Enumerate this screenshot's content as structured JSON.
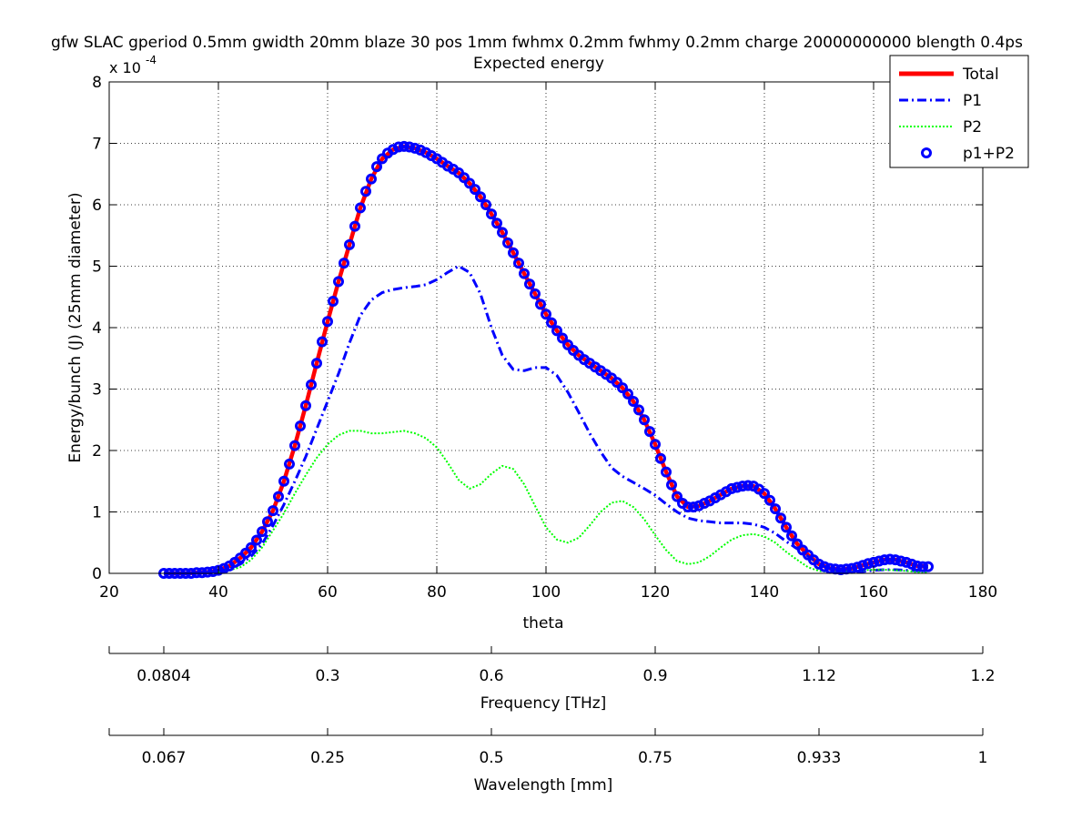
{
  "chart_data": {
    "type": "line",
    "title": "gfw SLAC gperiod 0.5mm gwidth 20mm blaze 30 pos 1mm fwhmx 0.2mm fwhmy 0.2mm charge 20000000000 blength 0.4ps",
    "subtitle": "Expected energy",
    "xlabel": "theta",
    "ylabel": "Energy/bunch (J) (25mm diameter)",
    "y_multiplier_label": "x 10",
    "y_multiplier_exponent": "-4",
    "y_scale_factor": 0.0001,
    "xlim": [
      20,
      180
    ],
    "ylim": [
      0,
      8
    ],
    "x_ticks": [
      20,
      40,
      60,
      80,
      100,
      120,
      140,
      160,
      180
    ],
    "y_ticks": [
      0,
      1,
      2,
      3,
      4,
      5,
      6,
      7,
      8
    ],
    "grid": true,
    "legend_position": "top-right",
    "series": [
      {
        "name": "Total",
        "style": "solid",
        "color": "#ff0000",
        "x": [
          30,
          32,
          34,
          36,
          38,
          40,
          42,
          44,
          46,
          48,
          50,
          52,
          54,
          56,
          58,
          60,
          62,
          64,
          66,
          68,
          70,
          72,
          74,
          76,
          78,
          80,
          82,
          84,
          86,
          88,
          90,
          92,
          94,
          96,
          98,
          100,
          102,
          104,
          106,
          108,
          110,
          112,
          114,
          116,
          118,
          120,
          122,
          124,
          126,
          128,
          130,
          132,
          134,
          136,
          138,
          140,
          142,
          144,
          146,
          148,
          150,
          152,
          154,
          156,
          158,
          160,
          162,
          164,
          166,
          168,
          170
        ],
        "y": [
          0.0,
          0.0,
          0.0,
          0.01,
          0.02,
          0.05,
          0.12,
          0.25,
          0.42,
          0.68,
          1.02,
          1.5,
          2.08,
          2.73,
          3.42,
          4.1,
          4.75,
          5.35,
          5.95,
          6.42,
          6.75,
          6.9,
          6.95,
          6.92,
          6.85,
          6.75,
          6.63,
          6.52,
          6.35,
          6.13,
          5.85,
          5.55,
          5.22,
          4.88,
          4.55,
          4.22,
          3.95,
          3.72,
          3.55,
          3.42,
          3.3,
          3.18,
          3.02,
          2.8,
          2.5,
          2.1,
          1.65,
          1.25,
          1.08,
          1.1,
          1.18,
          1.28,
          1.38,
          1.42,
          1.42,
          1.3,
          1.05,
          0.75,
          0.48,
          0.3,
          0.15,
          0.08,
          0.06,
          0.08,
          0.13,
          0.18,
          0.22,
          0.22,
          0.18,
          0.12,
          0.11
        ]
      },
      {
        "name": "P1",
        "style": "dashdot",
        "color": "#0000ff",
        "x": [
          30,
          32,
          34,
          36,
          38,
          40,
          42,
          44,
          46,
          48,
          50,
          52,
          54,
          56,
          58,
          60,
          62,
          64,
          66,
          68,
          70,
          72,
          74,
          76,
          78,
          80,
          82,
          84,
          86,
          88,
          90,
          92,
          94,
          96,
          98,
          100,
          102,
          104,
          106,
          108,
          110,
          112,
          114,
          116,
          118,
          120,
          122,
          124,
          126,
          128,
          130,
          132,
          134,
          136,
          138,
          140,
          142,
          144,
          146,
          148,
          150,
          152,
          154,
          156,
          158,
          160,
          162,
          164,
          166,
          168,
          170
        ],
        "y": [
          0.0,
          0.0,
          0.0,
          0.0,
          0.01,
          0.03,
          0.07,
          0.15,
          0.28,
          0.48,
          0.78,
          1.12,
          1.5,
          1.9,
          2.35,
          2.8,
          3.25,
          3.75,
          4.2,
          4.45,
          4.57,
          4.62,
          4.65,
          4.67,
          4.7,
          4.78,
          4.9,
          5.0,
          4.9,
          4.55,
          4.0,
          3.55,
          3.32,
          3.3,
          3.35,
          3.35,
          3.22,
          2.95,
          2.62,
          2.28,
          1.98,
          1.72,
          1.58,
          1.48,
          1.38,
          1.27,
          1.13,
          1.0,
          0.9,
          0.86,
          0.84,
          0.82,
          0.82,
          0.82,
          0.8,
          0.75,
          0.65,
          0.52,
          0.4,
          0.28,
          0.15,
          0.07,
          0.03,
          0.02,
          0.03,
          0.05,
          0.06,
          0.06,
          0.05,
          0.04,
          0.03
        ]
      },
      {
        "name": "P2",
        "style": "dotted",
        "color": "#00ff00",
        "x": [
          30,
          32,
          34,
          36,
          38,
          40,
          42,
          44,
          46,
          48,
          50,
          52,
          54,
          56,
          58,
          60,
          62,
          64,
          66,
          68,
          70,
          72,
          74,
          76,
          78,
          80,
          82,
          84,
          86,
          88,
          90,
          92,
          94,
          96,
          98,
          100,
          102,
          104,
          106,
          108,
          110,
          112,
          114,
          116,
          118,
          120,
          122,
          124,
          126,
          128,
          130,
          132,
          134,
          136,
          138,
          140,
          142,
          144,
          146,
          148,
          150,
          152,
          154,
          156,
          158,
          160,
          162,
          164,
          166,
          168,
          170
        ],
        "y": [
          0.0,
          0.0,
          0.0,
          0.0,
          0.01,
          0.02,
          0.05,
          0.1,
          0.22,
          0.42,
          0.7,
          0.98,
          1.3,
          1.6,
          1.88,
          2.1,
          2.25,
          2.32,
          2.32,
          2.28,
          2.28,
          2.3,
          2.32,
          2.28,
          2.2,
          2.05,
          1.8,
          1.52,
          1.38,
          1.45,
          1.62,
          1.75,
          1.7,
          1.45,
          1.1,
          0.75,
          0.55,
          0.5,
          0.58,
          0.78,
          1.0,
          1.15,
          1.18,
          1.08,
          0.88,
          0.62,
          0.38,
          0.2,
          0.15,
          0.18,
          0.28,
          0.42,
          0.55,
          0.62,
          0.64,
          0.6,
          0.5,
          0.35,
          0.22,
          0.1,
          0.04,
          0.02,
          0.02,
          0.03,
          0.05,
          0.06,
          0.06,
          0.05,
          0.04,
          0.02,
          0.01
        ]
      },
      {
        "name": "p1+P2",
        "style": "markers",
        "marker": "circle",
        "color": "#0000ff",
        "x": [
          30,
          31,
          32,
          33,
          34,
          35,
          36,
          37,
          38,
          39,
          40,
          41,
          42,
          43,
          44,
          45,
          46,
          47,
          48,
          49,
          50,
          51,
          52,
          53,
          54,
          55,
          56,
          57,
          58,
          59,
          60,
          61,
          62,
          63,
          64,
          65,
          66,
          67,
          68,
          69,
          70,
          71,
          72,
          73,
          74,
          75,
          76,
          77,
          78,
          79,
          80,
          81,
          82,
          83,
          84,
          85,
          86,
          87,
          88,
          89,
          90,
          91,
          92,
          93,
          94,
          95,
          96,
          97,
          98,
          99,
          100,
          101,
          102,
          103,
          104,
          105,
          106,
          107,
          108,
          109,
          110,
          111,
          112,
          113,
          114,
          115,
          116,
          117,
          118,
          119,
          120,
          121,
          122,
          123,
          124,
          125,
          126,
          127,
          128,
          129,
          130,
          131,
          132,
          133,
          134,
          135,
          136,
          137,
          138,
          139,
          140,
          141,
          142,
          143,
          144,
          145,
          146,
          147,
          148,
          149,
          150,
          151,
          152,
          153,
          154,
          155,
          156,
          157,
          158,
          159,
          160,
          161,
          162,
          163,
          164,
          165,
          166,
          167,
          168,
          169,
          170
        ],
        "y": [
          0.0,
          0.0,
          0.0,
          0.0,
          0.0,
          0.0,
          0.01,
          0.01,
          0.02,
          0.03,
          0.05,
          0.08,
          0.12,
          0.18,
          0.25,
          0.33,
          0.42,
          0.54,
          0.68,
          0.84,
          1.02,
          1.25,
          1.5,
          1.78,
          2.08,
          2.4,
          2.73,
          3.07,
          3.42,
          3.77,
          4.1,
          4.43,
          4.75,
          5.05,
          5.35,
          5.65,
          5.95,
          6.22,
          6.42,
          6.62,
          6.75,
          6.84,
          6.9,
          6.94,
          6.95,
          6.94,
          6.92,
          6.89,
          6.85,
          6.8,
          6.75,
          6.69,
          6.63,
          6.58,
          6.52,
          6.44,
          6.35,
          6.25,
          6.13,
          6.0,
          5.85,
          5.7,
          5.55,
          5.38,
          5.22,
          5.05,
          4.88,
          4.71,
          4.55,
          4.38,
          4.22,
          4.08,
          3.95,
          3.83,
          3.72,
          3.63,
          3.55,
          3.48,
          3.42,
          3.36,
          3.3,
          3.24,
          3.18,
          3.11,
          3.02,
          2.92,
          2.8,
          2.66,
          2.5,
          2.31,
          2.1,
          1.87,
          1.65,
          1.44,
          1.25,
          1.14,
          1.08,
          1.08,
          1.1,
          1.14,
          1.18,
          1.23,
          1.28,
          1.33,
          1.38,
          1.4,
          1.42,
          1.43,
          1.42,
          1.37,
          1.3,
          1.19,
          1.05,
          0.9,
          0.75,
          0.61,
          0.48,
          0.38,
          0.3,
          0.22,
          0.15,
          0.11,
          0.08,
          0.07,
          0.06,
          0.07,
          0.08,
          0.1,
          0.13,
          0.16,
          0.18,
          0.2,
          0.22,
          0.23,
          0.22,
          0.2,
          0.18,
          0.15,
          0.12,
          0.11,
          0.11
        ]
      }
    ],
    "frequency_axis": {
      "label": "Frequency [THz]",
      "ticks": [
        {
          "theta": 30,
          "label": "0.0804"
        },
        {
          "theta": 60,
          "label": "0.3"
        },
        {
          "theta": 90,
          "label": "0.6"
        },
        {
          "theta": 120,
          "label": "0.9"
        },
        {
          "theta": 150,
          "label": "1.12"
        },
        {
          "theta": 180,
          "label": "1.2"
        }
      ]
    },
    "wavelength_axis": {
      "label": "Wavelength [mm]",
      "ticks": [
        {
          "theta": 30,
          "label": "0.067"
        },
        {
          "theta": 60,
          "label": "0.25"
        },
        {
          "theta": 90,
          "label": "0.5"
        },
        {
          "theta": 120,
          "label": "0.75"
        },
        {
          "theta": 150,
          "label": "0.933"
        },
        {
          "theta": 180,
          "label": "1"
        }
      ]
    }
  }
}
